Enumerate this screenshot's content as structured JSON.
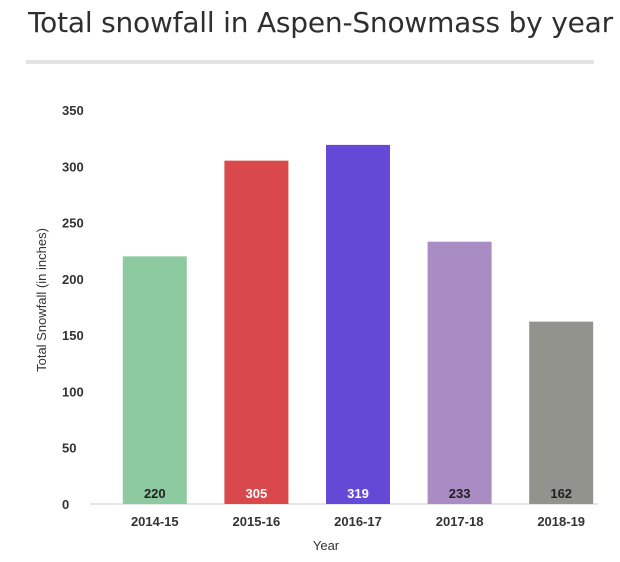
{
  "title": "Total snowfall in Aspen-Snowmass by year",
  "chart_data": {
    "type": "bar",
    "xlabel": "Year",
    "ylabel": "Total Snowfall (in inches)",
    "ylim": [
      0,
      350
    ],
    "yticks": [
      0,
      50,
      100,
      150,
      200,
      250,
      300,
      350
    ],
    "grid": false,
    "categories": [
      "2014-15",
      "2015-16",
      "2016-17",
      "2017-18",
      "2018-19"
    ],
    "values": [
      220,
      305,
      319,
      233,
      162
    ],
    "data_labels": [
      "220",
      "305",
      "319",
      "233",
      "162"
    ],
    "colors": [
      "#8dcaa0",
      "#d9484a",
      "#6349d6",
      "#aa8cc5",
      "#93938d"
    ],
    "label_colors": [
      "#1f1f1f",
      "#ffffff",
      "#ffffff",
      "#1f1f1f",
      "#1f1f1f"
    ]
  }
}
